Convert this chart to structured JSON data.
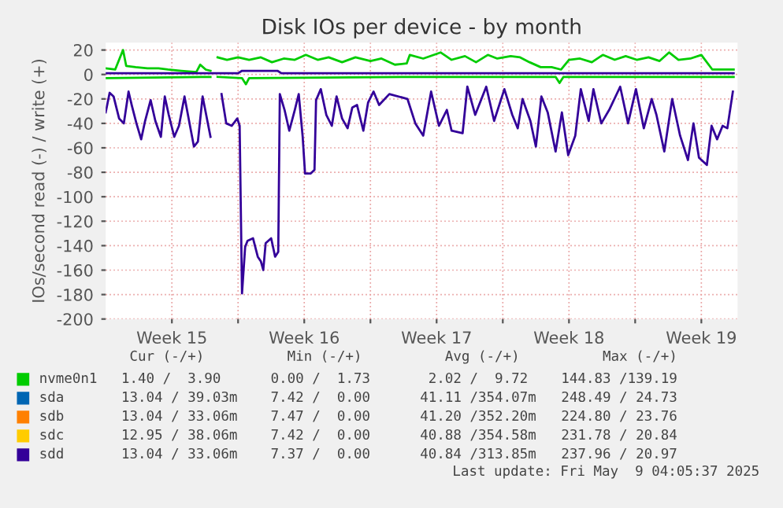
{
  "chart_data": {
    "type": "line",
    "title": "Disk IOs per device - by month",
    "ylabel": "IOs/second read (-) / write (+)",
    "xlim": [
      "2025-04-07T00:00",
      "2025-05-10T10:00"
    ],
    "ylim": [
      -200,
      26
    ],
    "xticks": [
      {
        "value": "2025-04-10T12:00",
        "label": "Week 15"
      },
      {
        "value": "2025-04-14T00:00",
        "label": null
      },
      {
        "value": "2025-04-17T12:00",
        "label": "Week 16"
      },
      {
        "value": "2025-04-21T00:00",
        "label": null
      },
      {
        "value": "2025-04-24T12:00",
        "label": "Week 17"
      },
      {
        "value": "2025-04-28T00:00",
        "label": null
      },
      {
        "value": "2025-05-01T12:00",
        "label": "Week 18"
      },
      {
        "value": "2025-05-05T00:00",
        "label": null
      },
      {
        "value": "2025-05-08T12:00",
        "label": "Week 19"
      }
    ],
    "yticks": [
      -200,
      -180,
      -160,
      -140,
      -120,
      -100,
      -80,
      -60,
      -40,
      -20,
      0,
      20
    ],
    "grid": true,
    "legend": "bottom",
    "marker": "none",
    "line_style": "solid",
    "series": [
      {
        "name": "nvme0n1",
        "color": "#00cc00",
        "x": [
          "2025-04-07T00:00",
          "2025-04-07T12:00",
          "2025-04-07T22:00",
          "2025-04-08T02:00",
          "2025-04-08T14:00",
          "2025-04-09T05:00",
          "2025-04-09T19:00",
          "2025-04-10T07:00",
          "2025-04-11T00:00",
          "2025-04-11T19:00",
          "2025-04-12T00:00",
          "2025-04-12T07:00",
          "2025-04-12T13:00",
          "2025-04-12T19:00",
          "2025-04-12T22:00",
          "2025-04-13T10:00",
          "2025-04-14T00:00",
          "2025-04-14T14:00",
          "2025-04-15T05:00",
          "2025-04-15T19:00",
          "2025-04-16T10:00",
          "2025-04-17T00:00",
          "2025-04-17T14:00",
          "2025-04-18T05:00",
          "2025-04-18T19:00",
          "2025-04-19T12:00",
          "2025-04-20T05:00",
          "2025-04-21T00:00",
          "2025-04-21T14:00",
          "2025-04-22T07:00",
          "2025-04-22T22:00",
          "2025-04-23T02:00",
          "2025-04-23T19:00",
          "2025-04-24T17:00",
          "2025-04-25T07:00",
          "2025-04-26T00:00",
          "2025-04-26T14:00",
          "2025-04-27T05:00",
          "2025-04-27T17:00",
          "2025-04-28T10:00",
          "2025-04-28T22:00",
          "2025-04-29T10:00",
          "2025-04-30T00:00",
          "2025-04-30T14:00",
          "2025-05-01T02:00",
          "2025-05-01T12:00",
          "2025-05-02T02:00",
          "2025-05-02T17:00",
          "2025-05-03T07:00",
          "2025-05-03T22:00",
          "2025-05-04T12:00",
          "2025-05-05T02:00",
          "2025-05-05T17:00",
          "2025-05-06T07:00",
          "2025-05-06T19:00",
          "2025-05-07T07:00",
          "2025-05-07T22:00",
          "2025-05-08T12:00",
          "2025-05-09T02:00",
          "2025-05-09T17:00",
          "2025-05-10T05:00"
        ],
        "values": [
          5,
          4,
          20,
          7,
          6,
          5,
          5,
          4,
          3,
          2,
          8,
          4,
          3,
          null,
          14,
          12,
          14,
          12,
          14,
          10,
          13,
          12,
          16,
          12,
          14,
          10,
          14,
          11,
          13,
          8,
          9,
          16,
          13,
          18,
          12,
          15,
          10,
          16,
          13,
          15,
          14,
          10,
          6,
          6,
          4,
          12,
          13,
          10,
          16,
          12,
          15,
          12,
          14,
          11,
          18,
          12,
          13,
          16,
          4,
          4,
          4
        ]
      },
      {
        "color": "#00cc00",
        "x": [
          "2025-04-07T00:00",
          "2025-04-12T13:00",
          "2025-04-12T19:00",
          "2025-04-12T22:00",
          "2025-04-14T05:00",
          "2025-04-14T10:00",
          "2025-04-14T14:00",
          "2025-04-23T00:00",
          "2025-04-30T19:00",
          "2025-05-01T00:00",
          "2025-05-01T05:00",
          "2025-05-10T05:00"
        ],
        "values": [
          -3,
          -2,
          null,
          -2,
          -3,
          -8,
          -3,
          -2,
          -2,
          -7,
          -2,
          -2
        ]
      },
      {
        "name": "sda",
        "color": "#0066b3"
      },
      {
        "name": "sdb",
        "color": "#ff8000"
      },
      {
        "name": "sdc",
        "color": "#ffcc00"
      },
      {
        "name": "sdd",
        "color": "#330099",
        "x": [
          "2025-04-07T00:00",
          "2025-04-14T00:00",
          "2025-04-14T05:00",
          "2025-04-16T02:00",
          "2025-04-16T07:00",
          "2025-05-10T05:00"
        ],
        "values": [
          1,
          1,
          3,
          3,
          1,
          1
        ]
      },
      {
        "color": "#330099",
        "x": [
          "2025-04-07T00:00",
          "2025-04-07T05:00",
          "2025-04-07T10:00",
          "2025-04-07T17:00",
          "2025-04-07T23:00",
          "2025-04-08T05:00",
          "2025-04-08T09:00",
          "2025-04-08T15:00",
          "2025-04-08T21:00",
          "2025-04-09T02:00",
          "2025-04-09T09:00",
          "2025-04-09T15:00",
          "2025-04-09T22:00",
          "2025-04-10T03:00",
          "2025-04-10T08:00",
          "2025-04-10T15:00",
          "2025-04-10T21:00",
          "2025-04-11T04:00",
          "2025-04-11T11:00",
          "2025-04-11T16:00",
          "2025-04-11T21:00",
          "2025-04-12T03:00",
          "2025-04-12T13:00",
          "2025-04-12T19:00",
          "2025-04-13T03:00",
          "2025-04-13T09:00",
          "2025-04-13T16:00",
          "2025-04-13T23:00",
          "2025-04-14T02:00",
          "2025-04-14T05:00",
          "2025-04-14T09:00",
          "2025-04-14T12:00",
          "2025-04-14T19:00",
          "2025-04-15T01:00",
          "2025-04-15T05:00",
          "2025-04-15T08:00",
          "2025-04-15T11:00",
          "2025-04-15T18:00",
          "2025-04-15T23:00",
          "2025-04-16T03:00",
          "2025-04-16T05:00",
          "2025-04-16T11:00",
          "2025-04-16T17:00",
          "2025-04-17T00:00",
          "2025-04-17T05:00",
          "2025-04-17T10:00",
          "2025-04-17T13:00",
          "2025-04-17T20:00",
          "2025-04-18T01:00",
          "2025-04-18T03:00",
          "2025-04-18T09:00",
          "2025-04-18T16:00",
          "2025-04-18T23:00",
          "2025-04-19T05:00",
          "2025-04-19T12:00",
          "2025-04-19T19:00",
          "2025-04-20T01:00",
          "2025-04-20T07:00",
          "2025-04-20T15:00",
          "2025-04-20T21:00",
          "2025-04-21T04:00",
          "2025-04-21T11:00",
          "2025-04-22T00:00",
          "2025-04-22T23:00",
          "2025-04-23T09:00",
          "2025-04-23T19:00",
          "2025-04-24T05:00",
          "2025-04-24T15:00",
          "2025-04-25T01:00",
          "2025-04-25T07:00",
          "2025-04-25T21:00",
          "2025-04-26T03:00",
          "2025-04-26T13:00",
          "2025-04-27T03:00",
          "2025-04-27T13:00",
          "2025-04-28T02:00",
          "2025-04-28T12:00",
          "2025-04-28T19:00",
          "2025-04-29T01:00",
          "2025-04-29T11:00",
          "2025-04-29T18:00",
          "2025-04-30T01:00",
          "2025-04-30T09:00",
          "2025-04-30T19:00",
          "2025-05-01T03:00",
          "2025-05-01T11:00",
          "2025-05-01T20:00",
          "2025-05-02T03:00",
          "2025-05-02T13:00",
          "2025-05-02T19:00",
          "2025-05-03T05:00",
          "2025-05-03T15:00",
          "2025-05-04T05:00",
          "2025-05-04T15:00",
          "2025-05-05T01:00",
          "2025-05-05T11:00",
          "2025-05-05T21:00",
          "2025-05-06T03:00",
          "2025-05-06T13:00",
          "2025-05-06T23:00",
          "2025-05-07T09:00",
          "2025-05-07T19:00",
          "2025-05-08T02:00",
          "2025-05-08T09:00",
          "2025-05-08T19:00",
          "2025-05-09T01:00",
          "2025-05-09T08:00",
          "2025-05-09T15:00",
          "2025-05-09T21:00",
          "2025-05-10T04:00"
        ],
        "values": [
          -31,
          -15,
          -18,
          -36,
          -40,
          -14,
          -25,
          -40,
          -53,
          -38,
          -21,
          -38,
          -51,
          -18,
          -33,
          -51,
          -42,
          -18,
          -42,
          -59,
          -55,
          -18,
          -51,
          null,
          -16,
          -40,
          -42,
          -36,
          -42,
          -179,
          -141,
          -136,
          -134,
          -149,
          -153,
          -160,
          -138,
          -134,
          -149,
          -145,
          -16,
          -29,
          -46,
          -29,
          -16,
          -51,
          -81,
          -81,
          -78,
          -21,
          -12,
          -33,
          -42,
          -18,
          -36,
          -44,
          -27,
          -25,
          -46,
          -23,
          -14,
          -25,
          -16,
          -20,
          -40,
          -50,
          -14,
          -42,
          -29,
          -46,
          -48,
          -10,
          -33,
          -10,
          -38,
          -12,
          -33,
          -44,
          -20,
          -38,
          -59,
          -18,
          -31,
          -63,
          -31,
          -66,
          -50,
          -12,
          -38,
          -12,
          -40,
          -29,
          -10,
          -40,
          -12,
          -44,
          -20,
          -33,
          -63,
          -20,
          -50,
          -70,
          -40,
          -68,
          -74,
          -42,
          -53,
          -42,
          -44,
          -14
        ]
      }
    ],
    "annotations": [
      "Cur (-/+)          Min (-/+)          Avg (-/+)          Max (-/+)",
      "1.40 /  3.90      0.00 /  1.73       2.02 /  9.72    144.83 /139.19",
      "13.04 / 39.03m    7.42 /  0.00      41.11 /354.07m   248.49 / 24.73",
      "13.04 / 33.06m    7.47 /  0.00      41.20 /352.20m   224.80 / 23.76",
      "12.95 / 38.06m    7.42 /  0.00      40.88 /354.58m   231.78 / 20.84",
      "13.04 / 33.06m    7.37 /  0.00      40.84 /313.85m   237.96 / 20.97",
      "Last update: Fri May  9 04:05:37 2025"
    ]
  }
}
